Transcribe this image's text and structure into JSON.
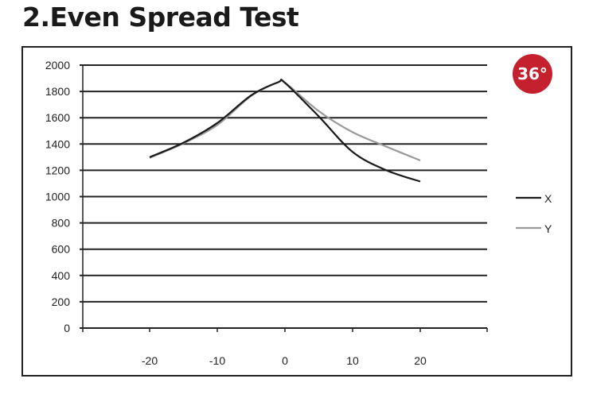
{
  "title": "2.Even Spread Test",
  "badge": "36°",
  "colors": {
    "X": "#1a1a1a",
    "Y": "#999999",
    "badge": "#c5202e"
  },
  "chart_data": {
    "type": "line",
    "title": "2.Even Spread Test",
    "xlabel": "",
    "ylabel": "",
    "x": [
      -20,
      -15,
      -10,
      -5,
      -1,
      0,
      5,
      10,
      15,
      20
    ],
    "series": [
      {
        "name": "X",
        "values": [
          1300,
          1410,
          1560,
          1770,
          1870,
          1865,
          1610,
          1340,
          1200,
          1115
        ]
      },
      {
        "name": "Y",
        "values": [
          1295,
          1405,
          1545,
          1765,
          1870,
          1868,
          1650,
          1490,
          1380,
          1275
        ]
      }
    ],
    "xticks": [
      "-20",
      "-10",
      "0",
      "10",
      "20"
    ],
    "xtick_values": [
      -20,
      -10,
      0,
      10,
      20
    ],
    "yticks": [
      "0",
      "200",
      "400",
      "600",
      "800",
      "1000",
      "1200",
      "1400",
      "1600",
      "1800",
      "2000"
    ],
    "ylim": [
      0,
      2000
    ],
    "xlim": [
      -30,
      30
    ],
    "grid": true,
    "legend": "right"
  }
}
